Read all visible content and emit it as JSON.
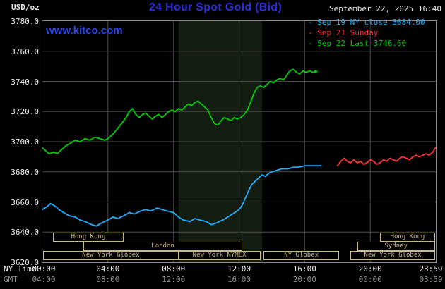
{
  "header": {
    "units_label": "USD/oz",
    "datetime": "September 22, 2025 16:40",
    "watermark": "www.kitco.com"
  },
  "axes": {
    "y_ticks": [
      3780.0,
      3760.0,
      3740.0,
      3720.0,
      3700.0,
      3680.0,
      3660.0,
      3640.0,
      3620.0
    ],
    "y_min": 3620,
    "y_max": 3780,
    "x_tick_hours": [
      0,
      4,
      8,
      12,
      16,
      20,
      23.983
    ],
    "x_row1_label": "NY Time",
    "x_row1_ticks": [
      "00:00",
      "04:00",
      "08:00",
      "12:00",
      "16:00",
      "20:00",
      "23:59"
    ],
    "x_row2_label": "GMT",
    "x_row2_ticks": [
      "04:00",
      "08:00",
      "12:00",
      "16:00",
      "20:00",
      "00:00",
      "03:59"
    ]
  },
  "sessions": {
    "rows": [
      {
        "boxes": [
          {
            "label": "Hong Kong",
            "start": 0.65,
            "end": 4.95
          },
          {
            "label": "Hong Kong",
            "start": 20.6,
            "end": 23.95
          }
        ]
      },
      {
        "boxes": [
          {
            "label": "London",
            "start": 2.5,
            "end": 12.2
          },
          {
            "label": "Sydney",
            "start": 19.2,
            "end": 23.95
          }
        ]
      },
      {
        "boxes": [
          {
            "label": "New York Globex",
            "start": 0.05,
            "end": 8.3
          },
          {
            "label": "New York NYMEX",
            "start": 8.3,
            "end": 13.3
          },
          {
            "label": "NY Globex",
            "start": 13.5,
            "end": 18.1
          },
          {
            "label": "New York Globex",
            "start": 18.8,
            "end": 23.95
          }
        ]
      }
    ]
  },
  "chart_data": {
    "type": "line",
    "title": "24 Hour Spot Gold (Bid)",
    "xlabel": "NY Time (00:00 - 23:59)",
    "ylabel": "USD/oz",
    "ylim": [
      3620,
      3780
    ],
    "xlim_hours": [
      0,
      24
    ],
    "grid": true,
    "legend_position": "top-right",
    "nymex_band_hours": [
      8.3,
      13.4
    ],
    "series": [
      {
        "id": "sep19",
        "name": "Sep 19 NY close 3684.00",
        "color": "#1fb0ff",
        "points": [
          [
            0,
            3655
          ],
          [
            0.3,
            3657
          ],
          [
            0.5,
            3659
          ],
          [
            0.8,
            3657
          ],
          [
            1,
            3655
          ],
          [
            1.3,
            3653
          ],
          [
            1.6,
            3651
          ],
          [
            2,
            3650
          ],
          [
            2.3,
            3648
          ],
          [
            2.6,
            3647
          ],
          [
            3,
            3645
          ],
          [
            3.3,
            3644
          ],
          [
            3.6,
            3646
          ],
          [
            4,
            3648
          ],
          [
            4.3,
            3650
          ],
          [
            4.6,
            3649
          ],
          [
            5,
            3651
          ],
          [
            5.3,
            3653
          ],
          [
            5.6,
            3652
          ],
          [
            6,
            3654
          ],
          [
            6.3,
            3655
          ],
          [
            6.6,
            3654
          ],
          [
            7,
            3656
          ],
          [
            7.3,
            3655
          ],
          [
            7.6,
            3654
          ],
          [
            8,
            3653
          ],
          [
            8.3,
            3650
          ],
          [
            8.6,
            3648
          ],
          [
            9,
            3647
          ],
          [
            9.3,
            3649
          ],
          [
            9.6,
            3648
          ],
          [
            10,
            3647
          ],
          [
            10.3,
            3645
          ],
          [
            10.6,
            3646
          ],
          [
            11,
            3648
          ],
          [
            11.3,
            3650
          ],
          [
            11.6,
            3652
          ],
          [
            12,
            3655
          ],
          [
            12.2,
            3658
          ],
          [
            12.4,
            3663
          ],
          [
            12.6,
            3668
          ],
          [
            12.8,
            3672
          ],
          [
            13,
            3674
          ],
          [
            13.2,
            3676
          ],
          [
            13.4,
            3678
          ],
          [
            13.6,
            3677
          ],
          [
            13.8,
            3679
          ],
          [
            14,
            3680
          ],
          [
            14.3,
            3681
          ],
          [
            14.6,
            3682
          ],
          [
            15,
            3682
          ],
          [
            15.3,
            3683
          ],
          [
            15.6,
            3683
          ],
          [
            16,
            3684
          ],
          [
            16.5,
            3684
          ],
          [
            17,
            3684
          ]
        ]
      },
      {
        "id": "sep21",
        "name": "Sep 21 Sunday",
        "color": "#ff3232",
        "points": [
          [
            18,
            3684
          ],
          [
            18.2,
            3687
          ],
          [
            18.4,
            3689
          ],
          [
            18.6,
            3687
          ],
          [
            18.8,
            3686
          ],
          [
            19,
            3688
          ],
          [
            19.2,
            3686
          ],
          [
            19.4,
            3687
          ],
          [
            19.6,
            3685
          ],
          [
            19.8,
            3686
          ],
          [
            20,
            3688
          ],
          [
            20.2,
            3687
          ],
          [
            20.4,
            3685
          ],
          [
            20.6,
            3686
          ],
          [
            20.8,
            3688
          ],
          [
            21,
            3687
          ],
          [
            21.2,
            3689
          ],
          [
            21.4,
            3688
          ],
          [
            21.6,
            3687
          ],
          [
            21.8,
            3689
          ],
          [
            22,
            3690
          ],
          [
            22.2,
            3689
          ],
          [
            22.4,
            3688
          ],
          [
            22.6,
            3690
          ],
          [
            22.8,
            3691
          ],
          [
            23,
            3690
          ],
          [
            23.2,
            3691
          ],
          [
            23.4,
            3692
          ],
          [
            23.6,
            3691
          ],
          [
            23.8,
            3693
          ],
          [
            23.98,
            3696
          ]
        ]
      },
      {
        "id": "sep22",
        "name": "Sep 22 Last 3746.60",
        "color": "#00cd00",
        "points": [
          [
            0,
            3696
          ],
          [
            0.2,
            3694
          ],
          [
            0.4,
            3692
          ],
          [
            0.7,
            3693
          ],
          [
            0.9,
            3692
          ],
          [
            1.1,
            3694
          ],
          [
            1.4,
            3697
          ],
          [
            1.7,
            3699
          ],
          [
            2,
            3701
          ],
          [
            2.3,
            3700
          ],
          [
            2.6,
            3702
          ],
          [
            2.9,
            3701
          ],
          [
            3.2,
            3703
          ],
          [
            3.5,
            3702
          ],
          [
            3.8,
            3701
          ],
          [
            4,
            3702
          ],
          [
            4.3,
            3705
          ],
          [
            4.6,
            3709
          ],
          [
            4.9,
            3713
          ],
          [
            5.1,
            3716
          ],
          [
            5.3,
            3720
          ],
          [
            5.5,
            3722
          ],
          [
            5.7,
            3718
          ],
          [
            5.9,
            3716
          ],
          [
            6.1,
            3718
          ],
          [
            6.3,
            3719
          ],
          [
            6.5,
            3717
          ],
          [
            6.7,
            3715
          ],
          [
            6.9,
            3717
          ],
          [
            7.1,
            3718
          ],
          [
            7.3,
            3716
          ],
          [
            7.5,
            3718
          ],
          [
            7.7,
            3720
          ],
          [
            7.9,
            3721
          ],
          [
            8.1,
            3720
          ],
          [
            8.3,
            3722
          ],
          [
            8.5,
            3721
          ],
          [
            8.7,
            3723
          ],
          [
            8.9,
            3725
          ],
          [
            9.1,
            3724
          ],
          [
            9.3,
            3726
          ],
          [
            9.5,
            3727
          ],
          [
            9.7,
            3725
          ],
          [
            9.9,
            3723
          ],
          [
            10.1,
            3721
          ],
          [
            10.3,
            3716
          ],
          [
            10.5,
            3712
          ],
          [
            10.7,
            3711
          ],
          [
            10.9,
            3714
          ],
          [
            11.1,
            3716
          ],
          [
            11.3,
            3715
          ],
          [
            11.5,
            3714
          ],
          [
            11.7,
            3716
          ],
          [
            11.9,
            3715
          ],
          [
            12.1,
            3716
          ],
          [
            12.3,
            3718
          ],
          [
            12.5,
            3721
          ],
          [
            12.7,
            3726
          ],
          [
            12.9,
            3732
          ],
          [
            13.1,
            3736
          ],
          [
            13.3,
            3737
          ],
          [
            13.5,
            3736
          ],
          [
            13.7,
            3738
          ],
          [
            13.9,
            3740
          ],
          [
            14.1,
            3739
          ],
          [
            14.3,
            3741
          ],
          [
            14.5,
            3742
          ],
          [
            14.7,
            3741
          ],
          [
            14.9,
            3744
          ],
          [
            15.1,
            3747
          ],
          [
            15.3,
            3748
          ],
          [
            15.5,
            3746
          ],
          [
            15.7,
            3745
          ],
          [
            15.9,
            3747
          ],
          [
            16.1,
            3746
          ],
          [
            16.3,
            3747
          ],
          [
            16.5,
            3746
          ],
          [
            16.67,
            3746.6
          ]
        ]
      }
    ]
  },
  "colors": {
    "background": "#000000",
    "title_blue": "#2b2be0",
    "watermark_blue": "#2b45e8",
    "text_white": "#ececec",
    "text_gray": "#909090",
    "grid": "#4c4c4c",
    "frame": "#8c8c8c",
    "band": "#141d12",
    "session": "#ccbb80"
  }
}
